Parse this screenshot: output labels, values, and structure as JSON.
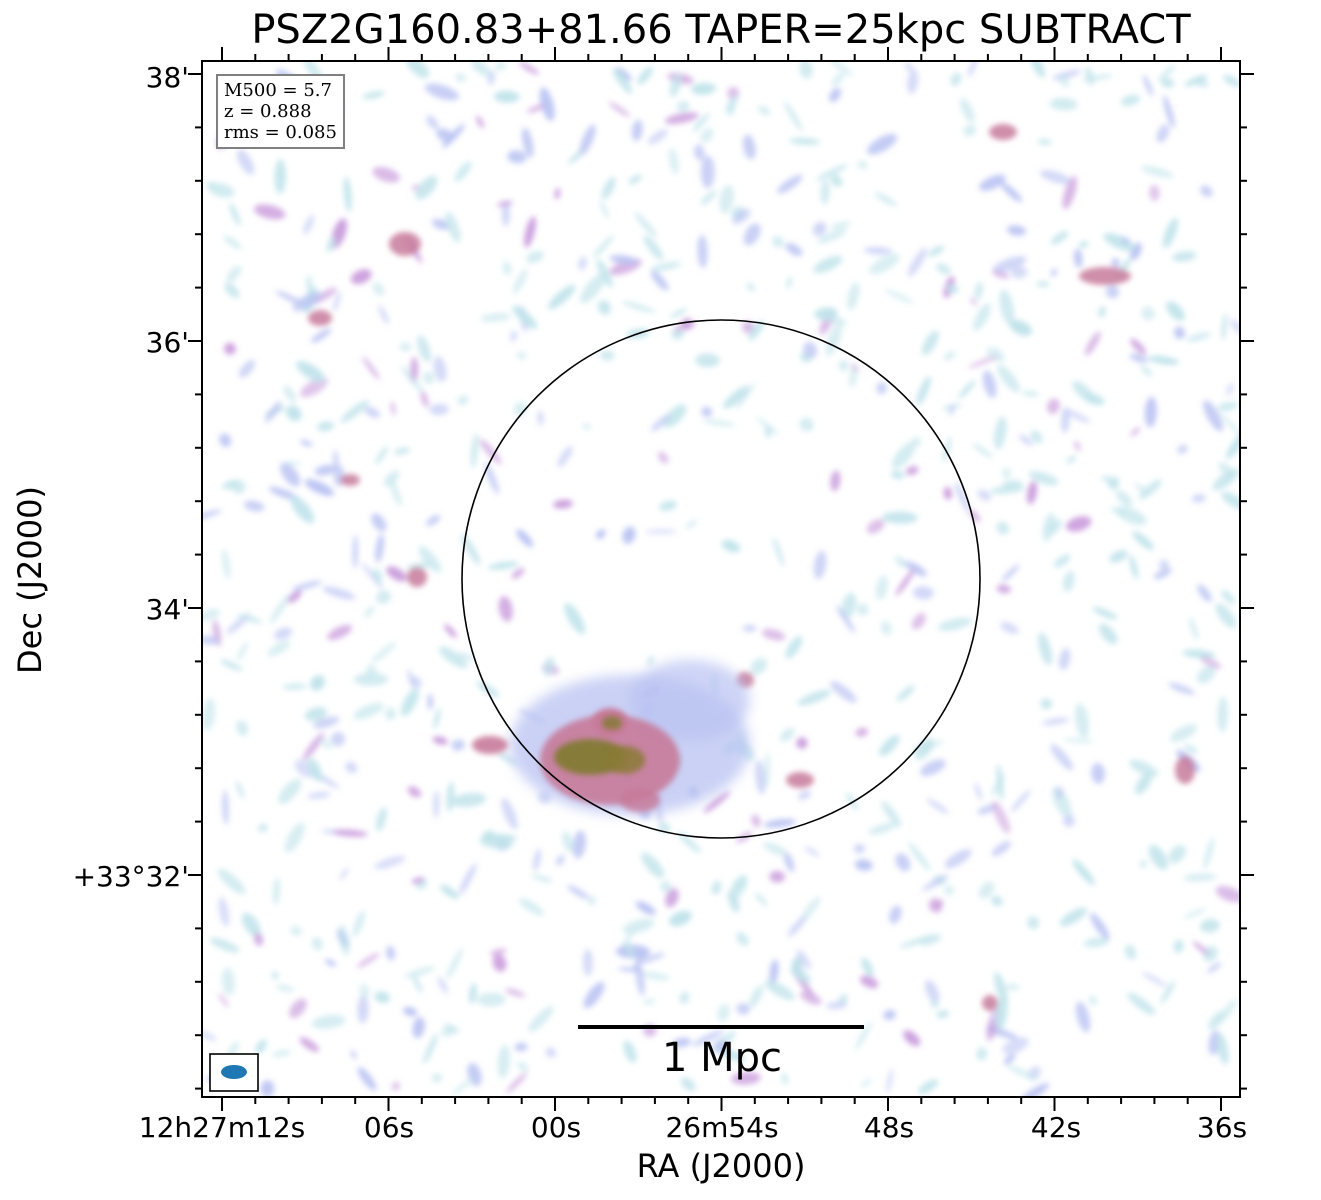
{
  "title": "PSZ2G160.83+81.66 TAPER=25kpc SUBTRACT",
  "xlabel": "RA (J2000)",
  "ylabel": "Dec (J2000)",
  "x_ticks": [
    "12h27m12s",
    "06s",
    "00s",
    "26m54s",
    "48s",
    "42s",
    "36s"
  ],
  "y_ticks": [
    "38'",
    "36'",
    "34'",
    "+33°32'"
  ],
  "info": {
    "m500": "M500 = 5.7",
    "z": "z = 0.888",
    "rms": "rms = 0.085"
  },
  "scalebar": "1 Mpc",
  "colors": {
    "faint": "#bfe3ea",
    "low": "#b9c2f2",
    "mid": "#c99bdc",
    "high": "#c77a9a",
    "peak": "#7f7a2f",
    "beam": "#1f77b4",
    "circle": "#000000"
  }
}
